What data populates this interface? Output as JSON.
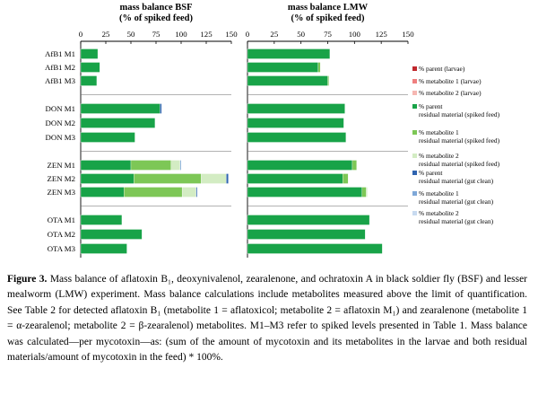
{
  "chart_data": {
    "type": "bar",
    "orientation": "horizontal",
    "stacked": true,
    "panels": [
      {
        "key": "bsf",
        "title_line1": "mass balance BSF",
        "title_line2": "(% of spiked feed)"
      },
      {
        "key": "lmw",
        "title_line1": "mass balance LMW",
        "title_line2": "(% of spiked feed)"
      }
    ],
    "xlim": [
      0,
      150
    ],
    "xticks": [
      "0",
      "25",
      "50",
      "75",
      "100",
      "125",
      "150"
    ],
    "categories": [
      "AfB1 M1",
      "AfB1 M2",
      "AfB1 M3",
      "DON M1",
      "DON M2",
      "DON M3",
      "ZEN M1",
      "ZEN M2",
      "ZEN M3",
      "OTA M1",
      "OTA M2",
      "OTA M3"
    ],
    "groups": [
      [
        0,
        1,
        2
      ],
      [
        3,
        4,
        5
      ],
      [
        6,
        7,
        8
      ],
      [
        9,
        10,
        11
      ]
    ],
    "series": [
      {
        "key": "p_larvae",
        "color": "#c0282d",
        "legend_line1": "% parent (larvae)",
        "legend_line2": ""
      },
      {
        "key": "m1_larvae",
        "color": "#ef7f7f",
        "legend_line1": "% metabolite 1 (larvae)",
        "legend_line2": ""
      },
      {
        "key": "m2_larvae",
        "color": "#f6b7b2",
        "legend_line1": "% metabolite 2 (larvae)",
        "legend_line2": ""
      },
      {
        "key": "p_res",
        "color": "#18a348",
        "legend_line1": "% parent",
        "legend_line2": "residual material (spiked feed)"
      },
      {
        "key": "m1_res",
        "color": "#7dc756",
        "legend_line1": "% metabolite 1",
        "legend_line2": "residual material (spiked feed)"
      },
      {
        "key": "m2_res",
        "color": "#d3ecc3",
        "legend_line1": "% metabolite 2",
        "legend_line2": "residual material (spiked feed)"
      },
      {
        "key": "p_gut",
        "color": "#2f64b0",
        "legend_line1": "% parent",
        "legend_line2": "residual material (gut clean)"
      },
      {
        "key": "m1_gut",
        "color": "#7fa8d8",
        "legend_line1": "% metabolite 1",
        "legend_line2": "residual material (gut clean)"
      },
      {
        "key": "m2_gut",
        "color": "#c8daf0",
        "legend_line1": "% metabolite 2",
        "legend_line2": "residual material (gut clean)"
      }
    ],
    "values": {
      "bsf": [
        {
          "p_res": 17
        },
        {
          "p_res": 19
        },
        {
          "p_res": 16
        },
        {
          "p_res": 79,
          "p_gut": 1.5
        },
        {
          "p_res": 74
        },
        {
          "p_res": 54
        },
        {
          "p_res": 50,
          "m1_res": 40,
          "m2_res": 9,
          "m1_gut": 1
        },
        {
          "p_res": 53,
          "m1_res": 67,
          "m2_res": 25,
          "p_gut": 2
        },
        {
          "p_res": 43,
          "m1_res": 58,
          "m2_res": 14,
          "p_gut": 1
        },
        {
          "p_res": 41
        },
        {
          "p_res": 61
        },
        {
          "p_res": 46
        }
      ],
      "lmw": [
        {
          "p_res": 77
        },
        {
          "p_res": 66,
          "m1_res": 2
        },
        {
          "p_res": 75,
          "m1_res": 1
        },
        {
          "p_res": 91
        },
        {
          "p_res": 90
        },
        {
          "p_res": 92
        },
        {
          "p_res": 98,
          "m1_res": 4
        },
        {
          "p_res": 89,
          "m1_res": 5
        },
        {
          "p_res": 107,
          "m1_res": 4,
          "m2_res": 1
        },
        {
          "p_res": 114
        },
        {
          "p_res": 110
        },
        {
          "p_res": 126
        }
      ]
    }
  },
  "caption": {
    "label": "Figure 3.",
    "lines": [
      "Mass balance of aflatoxin B₁, deoxynivalenol, zearalenone, and ochratoxin A in black",
      "soldier fly (BSF) and lesser mealworm (LMW) experiment. Mass balance calculations include",
      "metabolites measured above the limit of quantification. See Table 2 for detected aflatoxin B₁ (metabolite",
      "1 = aflatoxicol; metabolite 2 = aflatoxin M₁) and zearalenone (metabolite 1 = α-zearalenol; metabolite",
      "2 = β-zearalenol) metabolites. M1–M3 refer to spiked levels presented in Table 1. Mass balance was",
      "calculated—per mycotoxin—as: (sum of the amount of mycotoxin and its metabolites in the larvae and",
      "both residual materials/amount of mycotoxin in the feed) * 100%."
    ]
  }
}
